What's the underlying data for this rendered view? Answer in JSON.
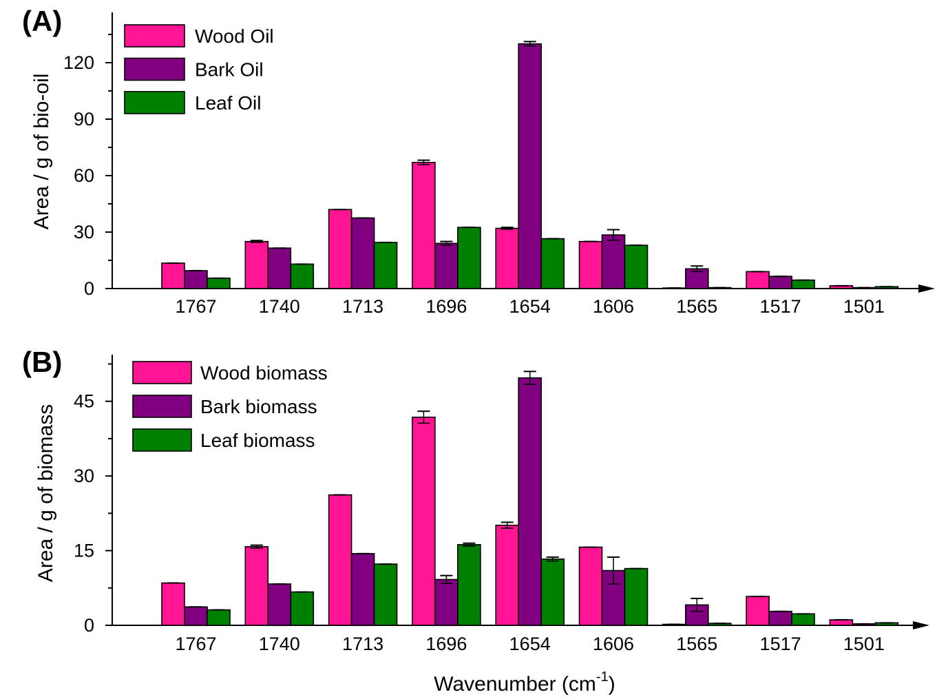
{
  "colors": {
    "pink": "#ff1493",
    "purple": "#800080",
    "green": "#008000"
  },
  "chart_data": [
    {
      "type": "bar",
      "panel_label": "(A)",
      "ylabel": "Area / g of bio-oil",
      "xlabel": "",
      "categories": [
        "1767",
        "1740",
        "1713",
        "1696",
        "1654",
        "1606",
        "1565",
        "1517",
        "1501"
      ],
      "ylim": [
        0,
        140
      ],
      "yticks": [
        0,
        30,
        60,
        90,
        120
      ],
      "legend_position": "top-left",
      "series": [
        {
          "name": "Wood Oil",
          "color": "#ff1493",
          "values": [
            13.5,
            25,
            42,
            67,
            32,
            25,
            0.3,
            9,
            1.5
          ],
          "errors": [
            0,
            0.5,
            0,
            1.2,
            0.5,
            0,
            0,
            0,
            0
          ]
        },
        {
          "name": "Bark Oil",
          "color": "#800080",
          "values": [
            9.5,
            21.5,
            37.5,
            24,
            130,
            28.5,
            10.5,
            6.5,
            0.5
          ],
          "errors": [
            0,
            0,
            0,
            1,
            1.2,
            2.8,
            1.5,
            0,
            0
          ]
        },
        {
          "name": "Leaf Oil",
          "color": "#008000",
          "values": [
            5.5,
            13,
            24.5,
            32.5,
            26.5,
            23,
            0.5,
            4.5,
            1
          ],
          "errors": [
            0,
            0,
            0,
            0,
            0,
            0,
            0,
            0,
            0
          ]
        }
      ]
    },
    {
      "type": "bar",
      "panel_label": "(B)",
      "ylabel": "Area / g of biomass",
      "xlabel": "Wavenumber (cm-1)",
      "xlabel_main": "Wavenumber (cm",
      "xlabel_sup": "-1",
      "xlabel_end": ")",
      "categories": [
        "1767",
        "1740",
        "1713",
        "1696",
        "1654",
        "1606",
        "1565",
        "1517",
        "1501"
      ],
      "ylim": [
        0,
        55
      ],
      "yticks": [
        0,
        15,
        30,
        45
      ],
      "legend_position": "top-left",
      "series": [
        {
          "name": "Wood biomass",
          "color": "#ff1493",
          "values": [
            8.5,
            15.8,
            26.2,
            41.8,
            20.1,
            15.7,
            0.2,
            5.8,
            1.1
          ],
          "errors": [
            0,
            0.3,
            0,
            1.2,
            0.6,
            0,
            0,
            0,
            0
          ]
        },
        {
          "name": "Bark biomass",
          "color": "#800080",
          "values": [
            3.7,
            8.3,
            14.4,
            9.2,
            49.7,
            11,
            4.1,
            2.8,
            0.3
          ],
          "errors": [
            0,
            0,
            0,
            0.8,
            1.3,
            2.7,
            1.3,
            0,
            0
          ]
        },
        {
          "name": "Leaf biomass",
          "color": "#008000",
          "values": [
            3.1,
            6.7,
            12.3,
            16.2,
            13.3,
            11.4,
            0.4,
            2.3,
            0.5
          ],
          "errors": [
            0,
            0,
            0,
            0.3,
            0.4,
            0,
            0,
            0,
            0
          ]
        }
      ]
    }
  ]
}
